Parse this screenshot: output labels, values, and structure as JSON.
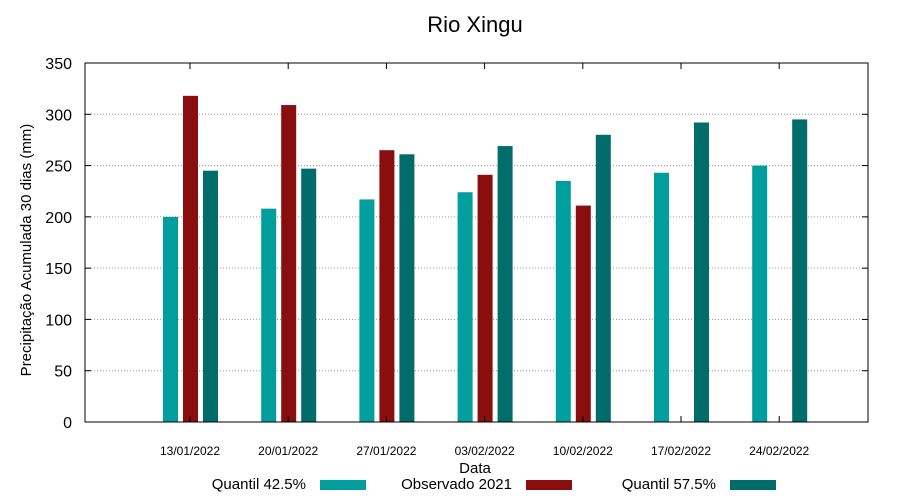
{
  "chart_data": {
    "type": "bar",
    "title": "Rio Xingu",
    "xlabel": "Data",
    "ylabel": "Precipitação Acumulada 30 dias (mm)",
    "ylim": [
      0,
      350
    ],
    "yticks": [
      0,
      50,
      100,
      150,
      200,
      250,
      300,
      350
    ],
    "grid": true,
    "legend_position": "bottom",
    "categories": [
      "13/01/2022",
      "20/01/2022",
      "27/01/2022",
      "03/02/2022",
      "10/02/2022",
      "17/02/2022",
      "24/02/2022"
    ],
    "series": [
      {
        "name": "Quantil 42.5%",
        "color": "#009e9c",
        "values": [
          200,
          208,
          217,
          224,
          235,
          243,
          250
        ]
      },
      {
        "name": "Observado 2021",
        "color": "#8b0e0e",
        "values": [
          318,
          309,
          265,
          241,
          211,
          null,
          null
        ]
      },
      {
        "name": "Quantil 57.5%",
        "color": "#006d6b",
        "values": [
          245,
          247,
          261,
          269,
          280,
          292,
          295
        ]
      }
    ]
  }
}
